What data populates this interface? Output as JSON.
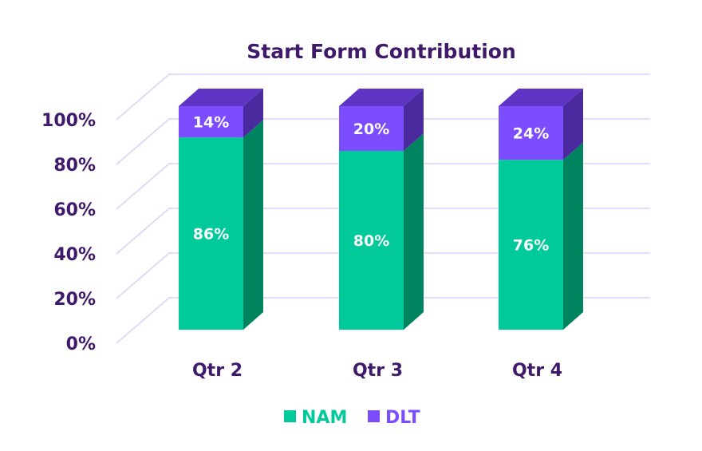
{
  "chart_data": {
    "type": "bar",
    "stacked": true,
    "title": "Start Form Contribution",
    "categories": [
      "Qtr 2",
      "Qtr 3",
      "Qtr 4"
    ],
    "series": [
      {
        "name": "NAM",
        "values": [
          86,
          80,
          76
        ],
        "labels": [
          "86%",
          "80%",
          "76%"
        ],
        "color": "#00c99a",
        "side_color": "#00835f",
        "top_color": "#00a47c"
      },
      {
        "name": "DLT",
        "values": [
          14,
          20,
          24
        ],
        "labels": [
          "14%",
          "20%",
          "24%"
        ],
        "color": "#7c4dff",
        "side_color": "#4b2aa0",
        "top_color": "#5e34c4"
      }
    ],
    "yticks": [
      "0%",
      "20%",
      "40%",
      "60%",
      "80%",
      "100%"
    ],
    "ylim": [
      0,
      100
    ],
    "grid": true,
    "legend": "bottom",
    "colors": {
      "text": "#3f1a6b",
      "grid": "#ddd0f5"
    }
  }
}
